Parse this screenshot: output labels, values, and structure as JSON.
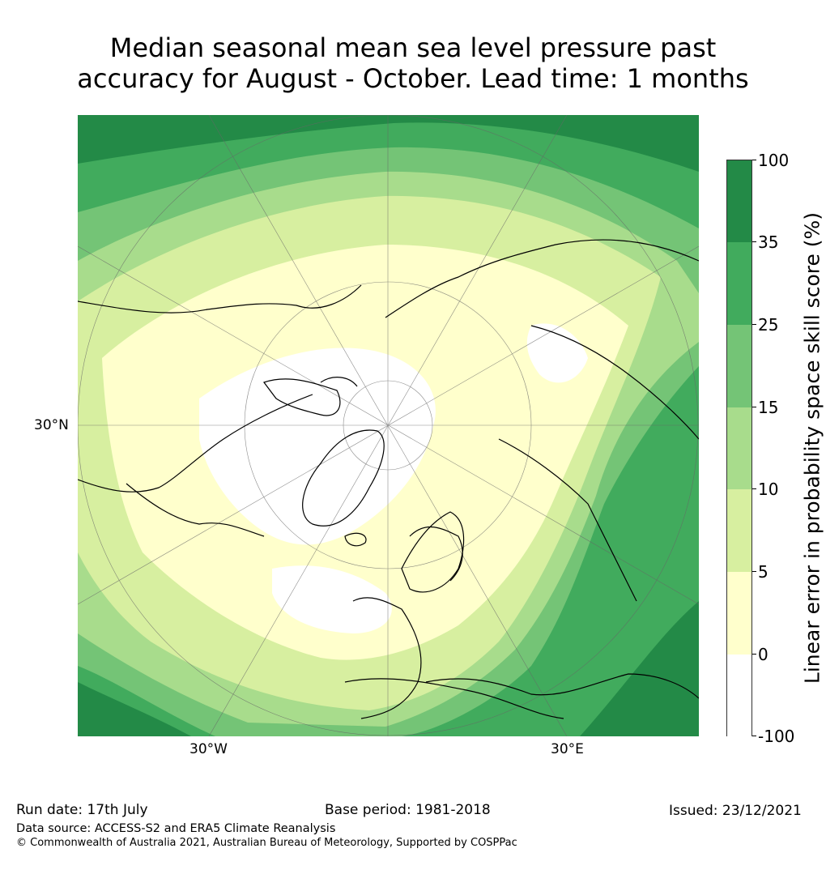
{
  "title_line1": "Median seasonal mean sea level pressure past",
  "title_line2": "accuracy for August - October. Lead time: 1 months",
  "map": {
    "projection": "north-polar-stereographic",
    "lat_label": "30°N",
    "lon_label_left": "30°W",
    "lon_label_right": "30°E"
  },
  "colorbar": {
    "label": "Linear error in probability space skill score (%)",
    "ticks": [
      "100",
      "35",
      "25",
      "15",
      "10",
      "5",
      "0",
      "-100"
    ],
    "bins": [
      {
        "range": "35 to 100",
        "color": "#238a47"
      },
      {
        "range": "25 to 35",
        "color": "#41ab5d"
      },
      {
        "range": "15 to 25",
        "color": "#74c476"
      },
      {
        "range": "10 to 15",
        "color": "#a8dc8c"
      },
      {
        "range": "5 to 10",
        "color": "#d7efa0"
      },
      {
        "range": "0 to 5",
        "color": "#ffffcc"
      },
      {
        "range": "-100 to 0",
        "color": "#ffffff"
      }
    ]
  },
  "footer": {
    "run_date": "Run date: 17th July",
    "base_period": "Base period: 1981-2018",
    "issued": "Issued: 23/12/2021",
    "data_source": "Data source: ACCESS-S2 and ERA5 Climate Reanalysis",
    "copyright": "© Commonwealth of Australia 2021, Australian Bureau of Meteorology, Supported by COSPPac"
  }
}
